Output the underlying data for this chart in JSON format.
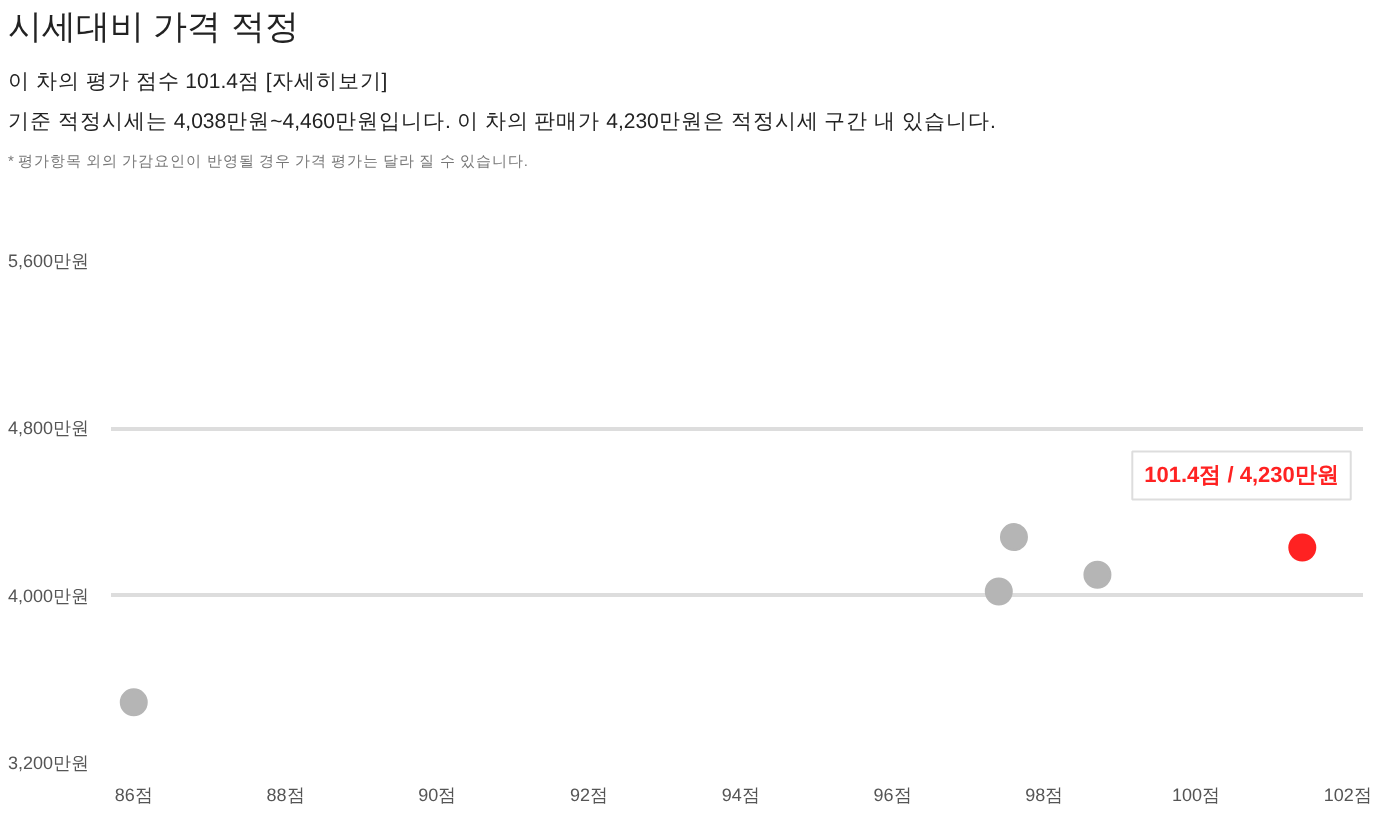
{
  "chart_data": {
    "type": "scatter",
    "title": "시세대비 가격 적정",
    "subtitle": "이 차의 평가 점수 101.4점 [자세히보기]",
    "annotations": [
      "기준 적정시세는 4,038만원~4,460만원입니다. 이 차의 판매가 4,230만원은 적정시세 구간 내 있습니다.",
      "* 평가항목 외의 가감요인이 반영될 경우 가격 평가는 달라 질 수 있습니다.",
      {
        "text": "101.4점 / 4,230만원",
        "x": 101.4,
        "y": 4230
      }
    ],
    "series": [
      {
        "color": "#b5b5b5",
        "x": [
          86.0,
          97.4,
          97.6,
          98.7
        ],
        "values": [
          3490,
          4020,
          4280,
          4100
        ]
      },
      {
        "color": "#ff2222",
        "x": [
          101.4
        ],
        "values": [
          4230
        ]
      }
    ],
    "xlim": [
      85.7,
      102.2
    ],
    "ylim": [
      3200,
      5600
    ],
    "xticks": [
      {
        "value": 86,
        "label": "86점"
      },
      {
        "value": 88,
        "label": "88점"
      },
      {
        "value": 90,
        "label": "90점"
      },
      {
        "value": 92,
        "label": "92점"
      },
      {
        "value": 94,
        "label": "94점"
      },
      {
        "value": 96,
        "label": "96점"
      },
      {
        "value": 98,
        "label": "98점"
      },
      {
        "value": 100,
        "label": "100점"
      },
      {
        "value": 102,
        "label": "102점"
      }
    ],
    "yticks": [
      {
        "value": 3200,
        "label": "3,200만원"
      },
      {
        "value": 4000,
        "label": "4,000만원"
      },
      {
        "value": 4800,
        "label": "4,800만원"
      },
      {
        "value": 5600,
        "label": "5,600만원"
      }
    ],
    "grid": "y",
    "marker": "circle"
  }
}
